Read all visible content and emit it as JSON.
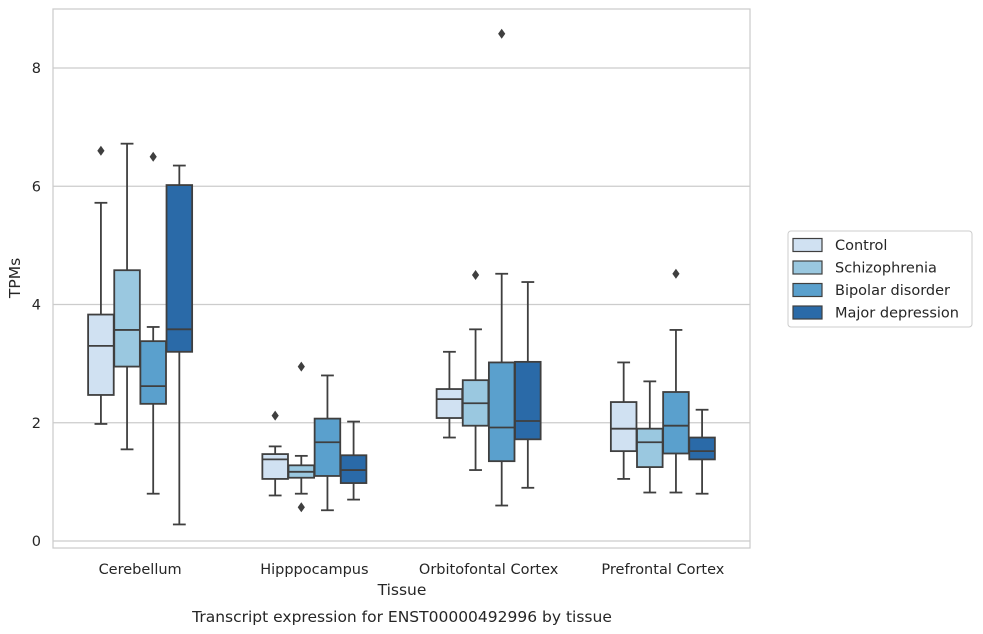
{
  "chart_data": {
    "type": "box",
    "caption": "Transcript expression for ENST00000492996 by tissue",
    "xlabel": "Tissue",
    "ylabel": "TPMs",
    "ylim": [
      -0.15,
      9.1
    ],
    "yticks": [
      0,
      2,
      4,
      6,
      8
    ],
    "grid": "horizontal",
    "legend_position": "right",
    "categories": [
      "Cerebellum",
      "Hipppocampus",
      "Orbitofontal Cortex",
      "Prefrontal Cortex"
    ],
    "series": [
      {
        "name": "Control",
        "color": "#d0e1f2",
        "boxes": [
          {
            "whisker_low": 1.98,
            "q1": 2.47,
            "median": 3.3,
            "q3": 3.83,
            "whisker_high": 5.72,
            "outliers": [
              6.6
            ]
          },
          {
            "whisker_low": 0.77,
            "q1": 1.05,
            "median": 1.38,
            "q3": 1.47,
            "whisker_high": 1.6,
            "outliers": [
              2.12
            ]
          },
          {
            "whisker_low": 1.75,
            "q1": 2.08,
            "median": 2.4,
            "q3": 2.57,
            "whisker_high": 3.2,
            "outliers": []
          },
          {
            "whisker_low": 1.05,
            "q1": 1.52,
            "median": 1.9,
            "q3": 2.35,
            "whisker_high": 3.02,
            "outliers": []
          }
        ]
      },
      {
        "name": "Schizophrenia",
        "color": "#9ac8e0",
        "boxes": [
          {
            "whisker_low": 1.55,
            "q1": 2.95,
            "median": 3.57,
            "q3": 4.58,
            "whisker_high": 6.72,
            "outliers": []
          },
          {
            "whisker_low": 0.8,
            "q1": 1.07,
            "median": 1.17,
            "q3": 1.28,
            "whisker_high": 1.44,
            "outliers": [
              2.95,
              0.57
            ]
          },
          {
            "whisker_low": 1.2,
            "q1": 1.95,
            "median": 2.33,
            "q3": 2.72,
            "whisker_high": 3.58,
            "outliers": [
              4.5
            ]
          },
          {
            "whisker_low": 0.82,
            "q1": 1.25,
            "median": 1.67,
            "q3": 1.9,
            "whisker_high": 2.7,
            "outliers": []
          }
        ]
      },
      {
        "name": "Bipolar disorder",
        "color": "#5aa0cd",
        "boxes": [
          {
            "whisker_low": 0.8,
            "q1": 2.32,
            "median": 2.62,
            "q3": 3.38,
            "whisker_high": 3.62,
            "outliers": [
              6.5
            ]
          },
          {
            "whisker_low": 0.52,
            "q1": 1.1,
            "median": 1.67,
            "q3": 2.07,
            "whisker_high": 2.8,
            "outliers": []
          },
          {
            "whisker_low": 0.6,
            "q1": 1.35,
            "median": 1.92,
            "q3": 3.02,
            "whisker_high": 4.52,
            "outliers": [
              8.58
            ]
          },
          {
            "whisker_low": 0.82,
            "q1": 1.48,
            "median": 1.95,
            "q3": 2.52,
            "whisker_high": 3.57,
            "outliers": [
              4.52
            ]
          }
        ]
      },
      {
        "name": "Major depression",
        "color": "#2a6aa8",
        "boxes": [
          {
            "whisker_low": 0.28,
            "q1": 3.2,
            "median": 3.58,
            "q3": 6.02,
            "whisker_high": 6.35,
            "outliers": []
          },
          {
            "whisker_low": 0.7,
            "q1": 0.98,
            "median": 1.2,
            "q3": 1.45,
            "whisker_high": 2.02,
            "outliers": []
          },
          {
            "whisker_low": 0.9,
            "q1": 1.72,
            "median": 2.03,
            "q3": 3.03,
            "whisker_high": 4.38,
            "outliers": []
          },
          {
            "whisker_low": 0.8,
            "q1": 1.38,
            "median": 1.52,
            "q3": 1.75,
            "whisker_high": 2.22,
            "outliers": []
          }
        ]
      }
    ]
  }
}
